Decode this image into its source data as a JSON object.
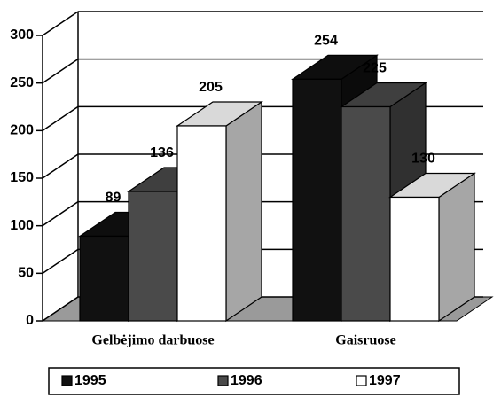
{
  "chart_data": {
    "type": "bar3d",
    "categories": [
      "Gelbėjimo darbuose",
      "Gaisruose"
    ],
    "series": [
      {
        "name": "1995",
        "color": "#111111",
        "values": [
          89,
          254
        ]
      },
      {
        "name": "1996",
        "color": "#4a4a4a",
        "values": [
          136,
          225
        ]
      },
      {
        "name": "1997",
        "color": "#ffffff",
        "values": [
          205,
          130
        ]
      }
    ],
    "ylim": [
      0,
      300
    ],
    "yticks": [
      0,
      50,
      100,
      150,
      200,
      250,
      300
    ],
    "grid": true
  }
}
